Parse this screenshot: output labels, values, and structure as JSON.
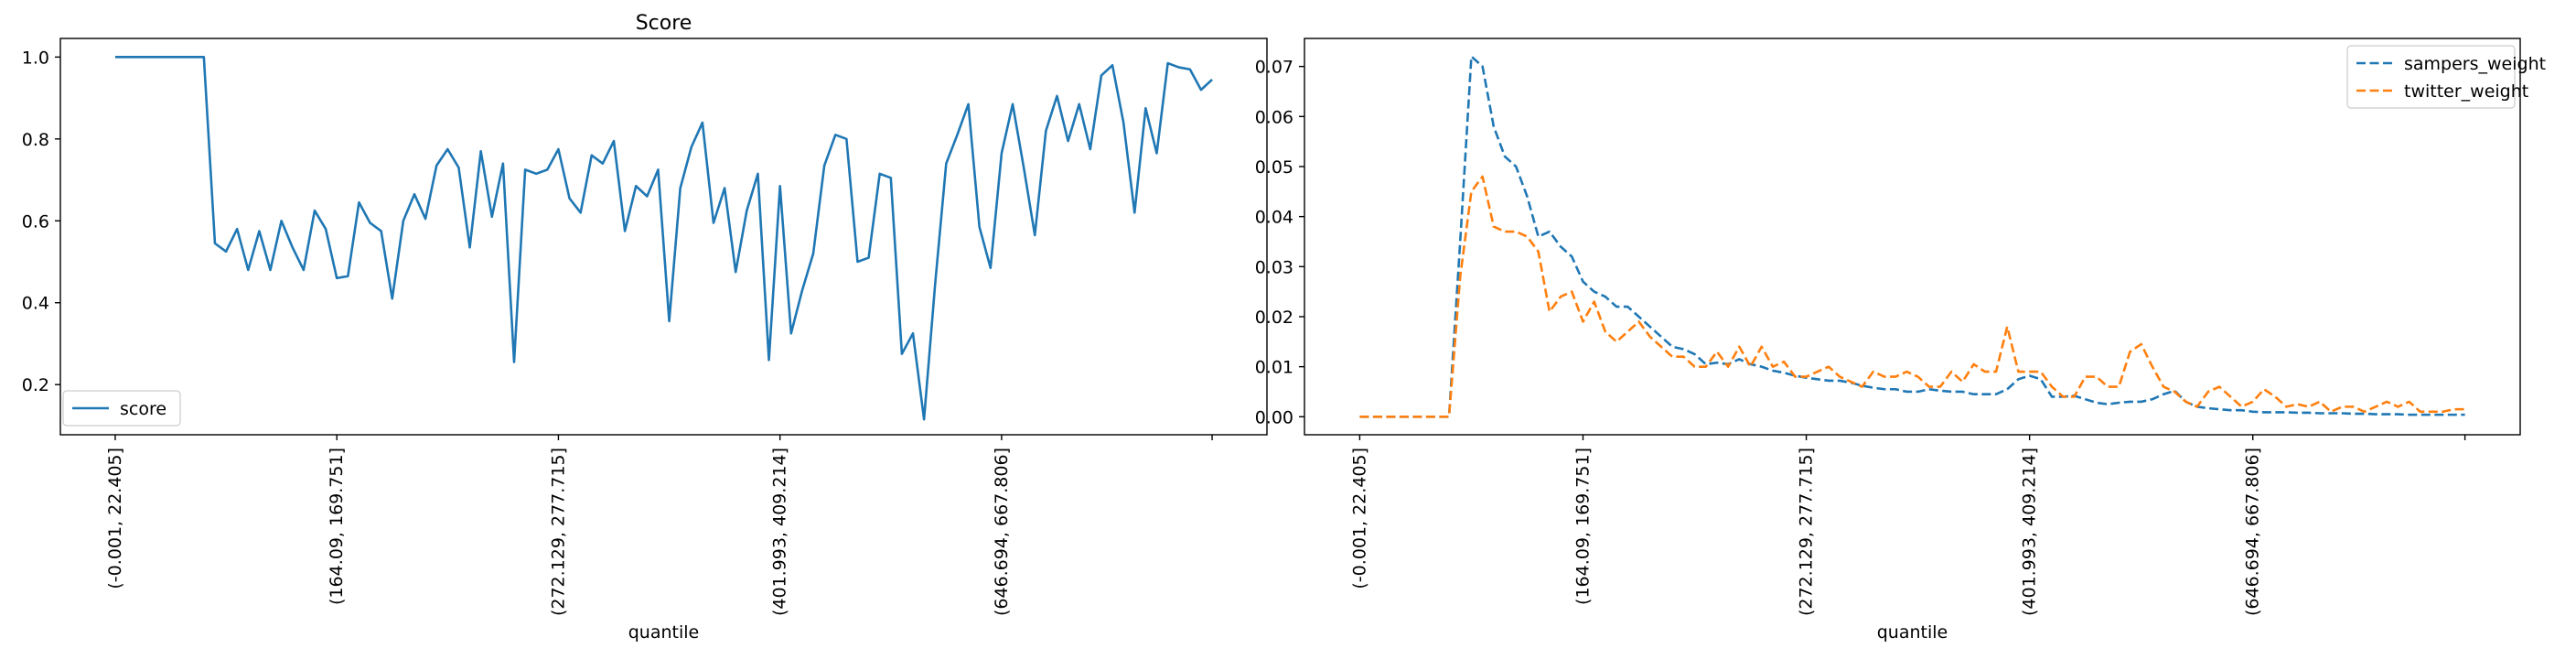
{
  "colors": {
    "blue": "#1f77b4",
    "orange": "#ff7f0e",
    "axis": "#000000",
    "legend_border": "#cccccc"
  },
  "chart_data": [
    {
      "type": "line",
      "title": "Score",
      "xlabel": "quantile",
      "ylabel": "",
      "xlim": [
        -4.95,
        103.95
      ],
      "ylim": [
        0.0775,
        1.0455
      ],
      "yticks": [
        0.2,
        0.4,
        0.6,
        0.8,
        1.0
      ],
      "ytick_labels": [
        "0.2",
        "0.4",
        "0.6",
        "0.8",
        "1.0"
      ],
      "xticks": [
        0,
        20,
        40,
        60,
        80,
        99
      ],
      "xtick_labels": [
        "(-0.001, 22.405]",
        "(164.09, 169.751]",
        "(272.129, 277.715]",
        "(401.993, 409.214]",
        "(646.694, 667.806]",
        ""
      ],
      "grid": false,
      "legend_position": "lower-left",
      "series": [
        {
          "name": "score",
          "style": "solid",
          "color": "#1f77b4",
          "x": [
            0,
            1,
            2,
            3,
            4,
            5,
            6,
            7,
            8,
            9,
            10,
            11,
            12,
            13,
            14,
            15,
            16,
            17,
            18,
            19,
            20,
            21,
            22,
            23,
            24,
            25,
            26,
            27,
            28,
            29,
            30,
            31,
            32,
            33,
            34,
            35,
            36,
            37,
            38,
            39,
            40,
            41,
            42,
            43,
            44,
            45,
            46,
            47,
            48,
            49,
            50,
            51,
            52,
            53,
            54,
            55,
            56,
            57,
            58,
            59,
            60,
            61,
            62,
            63,
            64,
            65,
            66,
            67,
            68,
            69,
            70,
            71,
            72,
            73,
            74,
            75,
            76,
            77,
            78,
            79,
            80,
            81,
            82,
            83,
            84,
            85,
            86,
            87,
            88,
            89,
            90,
            91,
            92,
            93,
            94,
            95,
            96,
            97,
            98,
            99
          ],
          "y": [
            1.0,
            1.0,
            1.0,
            1.0,
            1.0,
            1.0,
            1.0,
            1.0,
            1.0,
            0.545,
            0.525,
            0.58,
            0.48,
            0.575,
            0.48,
            0.6,
            0.535,
            0.48,
            0.625,
            0.58,
            0.46,
            0.465,
            0.645,
            0.595,
            0.575,
            0.41,
            0.6,
            0.665,
            0.605,
            0.735,
            0.775,
            0.73,
            0.535,
            0.77,
            0.61,
            0.74,
            0.255,
            0.725,
            0.715,
            0.725,
            0.775,
            0.655,
            0.62,
            0.76,
            0.74,
            0.795,
            0.575,
            0.685,
            0.66,
            0.725,
            0.355,
            0.68,
            0.78,
            0.84,
            0.595,
            0.68,
            0.475,
            0.625,
            0.715,
            0.26,
            0.685,
            0.325,
            0.43,
            0.52,
            0.735,
            0.81,
            0.8,
            0.5,
            0.51,
            0.715,
            0.705,
            0.275,
            0.325,
            0.115,
            0.445,
            0.74,
            0.81,
            0.885,
            0.585,
            0.485,
            0.765,
            0.885,
            0.73,
            0.565,
            0.82,
            0.905,
            0.795,
            0.885,
            0.775,
            0.955,
            0.98,
            0.84,
            0.62,
            0.875,
            0.765,
            0.985,
            0.975,
            0.97,
            0.92,
            0.945
          ]
        }
      ]
    },
    {
      "type": "line",
      "title": "",
      "xlabel": "quantile",
      "ylabel": "",
      "xlim": [
        -4.95,
        103.95
      ],
      "ylim": [
        -0.0036,
        0.0756
      ],
      "yticks": [
        0.0,
        0.01,
        0.02,
        0.03,
        0.04,
        0.05,
        0.06,
        0.07
      ],
      "ytick_labels": [
        "0.00",
        "0.01",
        "0.02",
        "0.03",
        "0.04",
        "0.05",
        "0.06",
        "0.07"
      ],
      "xticks": [
        0,
        20,
        40,
        60,
        80,
        99
      ],
      "xtick_labels": [
        "(-0.001, 22.405]",
        "(164.09, 169.751]",
        "(272.129, 277.715]",
        "(401.993, 409.214]",
        "(646.694, 667.806]",
        ""
      ],
      "grid": false,
      "legend_position": "upper-right",
      "series": [
        {
          "name": "sampers_weight",
          "style": "dashed",
          "color": "#1f77b4",
          "x": [
            0,
            1,
            2,
            3,
            4,
            5,
            6,
            7,
            8,
            9,
            10,
            11,
            12,
            13,
            14,
            15,
            16,
            17,
            18,
            19,
            20,
            21,
            22,
            23,
            24,
            25,
            26,
            27,
            28,
            29,
            30,
            31,
            32,
            33,
            34,
            35,
            36,
            37,
            38,
            39,
            40,
            41,
            42,
            43,
            44,
            45,
            46,
            47,
            48,
            49,
            50,
            51,
            52,
            53,
            54,
            55,
            56,
            57,
            58,
            59,
            60,
            61,
            62,
            63,
            64,
            65,
            66,
            67,
            68,
            69,
            70,
            71,
            72,
            73,
            74,
            75,
            76,
            77,
            78,
            79,
            80,
            81,
            82,
            83,
            84,
            85,
            86,
            87,
            88,
            89,
            90,
            91,
            92,
            93,
            94,
            95,
            96,
            97,
            98,
            99
          ],
          "y": [
            0,
            0,
            0,
            0,
            0,
            0,
            0,
            0,
            0,
            0.035,
            0.072,
            0.07,
            0.058,
            0.052,
            0.05,
            0.044,
            0.036,
            0.037,
            0.034,
            0.032,
            0.027,
            0.025,
            0.024,
            0.022,
            0.022,
            0.02,
            0.018,
            0.016,
            0.014,
            0.0135,
            0.0125,
            0.0105,
            0.0108,
            0.0105,
            0.0115,
            0.0105,
            0.01,
            0.0092,
            0.0088,
            0.0082,
            0.0078,
            0.0075,
            0.0072,
            0.0072,
            0.0068,
            0.0062,
            0.0058,
            0.0055,
            0.0055,
            0.005,
            0.005,
            0.0055,
            0.0052,
            0.005,
            0.005,
            0.0045,
            0.0045,
            0.0045,
            0.0055,
            0.0075,
            0.0082,
            0.0075,
            0.004,
            0.004,
            0.0042,
            0.0035,
            0.0028,
            0.0025,
            0.0028,
            0.003,
            0.003,
            0.0035,
            0.0045,
            0.0052,
            0.003,
            0.002,
            0.0017,
            0.0015,
            0.0013,
            0.0013,
            0.001,
            0.0009,
            0.0009,
            0.0009,
            0.0008,
            0.0008,
            0.0007,
            0.0007,
            0.0007,
            0.0006,
            0.0006,
            0.0005,
            0.0005,
            0.0005,
            0.0004,
            0.0004,
            0.0004,
            0.0004,
            0.0004,
            0.0004
          ]
        },
        {
          "name": "twitter_weight",
          "style": "dashed",
          "color": "#ff7f0e",
          "x": [
            0,
            1,
            2,
            3,
            4,
            5,
            6,
            7,
            8,
            9,
            10,
            11,
            12,
            13,
            14,
            15,
            16,
            17,
            18,
            19,
            20,
            21,
            22,
            23,
            24,
            25,
            26,
            27,
            28,
            29,
            30,
            31,
            32,
            33,
            34,
            35,
            36,
            37,
            38,
            39,
            40,
            41,
            42,
            43,
            44,
            45,
            46,
            47,
            48,
            49,
            50,
            51,
            52,
            53,
            54,
            55,
            56,
            57,
            58,
            59,
            60,
            61,
            62,
            63,
            64,
            65,
            66,
            67,
            68,
            69,
            70,
            71,
            72,
            73,
            74,
            75,
            76,
            77,
            78,
            79,
            80,
            81,
            82,
            83,
            84,
            85,
            86,
            87,
            88,
            89,
            90,
            91,
            92,
            93,
            94,
            95,
            96,
            97,
            98,
            99
          ],
          "y": [
            0,
            0,
            0,
            0,
            0,
            0,
            0,
            0,
            0,
            0.028,
            0.045,
            0.048,
            0.038,
            0.037,
            0.037,
            0.036,
            0.033,
            0.021,
            0.024,
            0.025,
            0.019,
            0.023,
            0.017,
            0.015,
            0.017,
            0.019,
            0.016,
            0.014,
            0.012,
            0.012,
            0.01,
            0.01,
            0.013,
            0.01,
            0.014,
            0.01,
            0.014,
            0.01,
            0.011,
            0.008,
            0.008,
            0.009,
            0.01,
            0.008,
            0.007,
            0.006,
            0.009,
            0.008,
            0.008,
            0.009,
            0.008,
            0.006,
            0.006,
            0.009,
            0.007,
            0.0105,
            0.009,
            0.009,
            0.018,
            0.009,
            0.009,
            0.009,
            0.006,
            0.004,
            0.004,
            0.008,
            0.008,
            0.006,
            0.006,
            0.013,
            0.0145,
            0.01,
            0.006,
            0.005,
            0.003,
            0.002,
            0.005,
            0.006,
            0.004,
            0.002,
            0.003,
            0.0055,
            0.004,
            0.002,
            0.0025,
            0.002,
            0.003,
            0.001,
            0.002,
            0.002,
            0.001,
            0.002,
            0.003,
            0.002,
            0.003,
            0.001,
            0.001,
            0.001,
            0.0015,
            0.0015
          ]
        }
      ]
    }
  ]
}
